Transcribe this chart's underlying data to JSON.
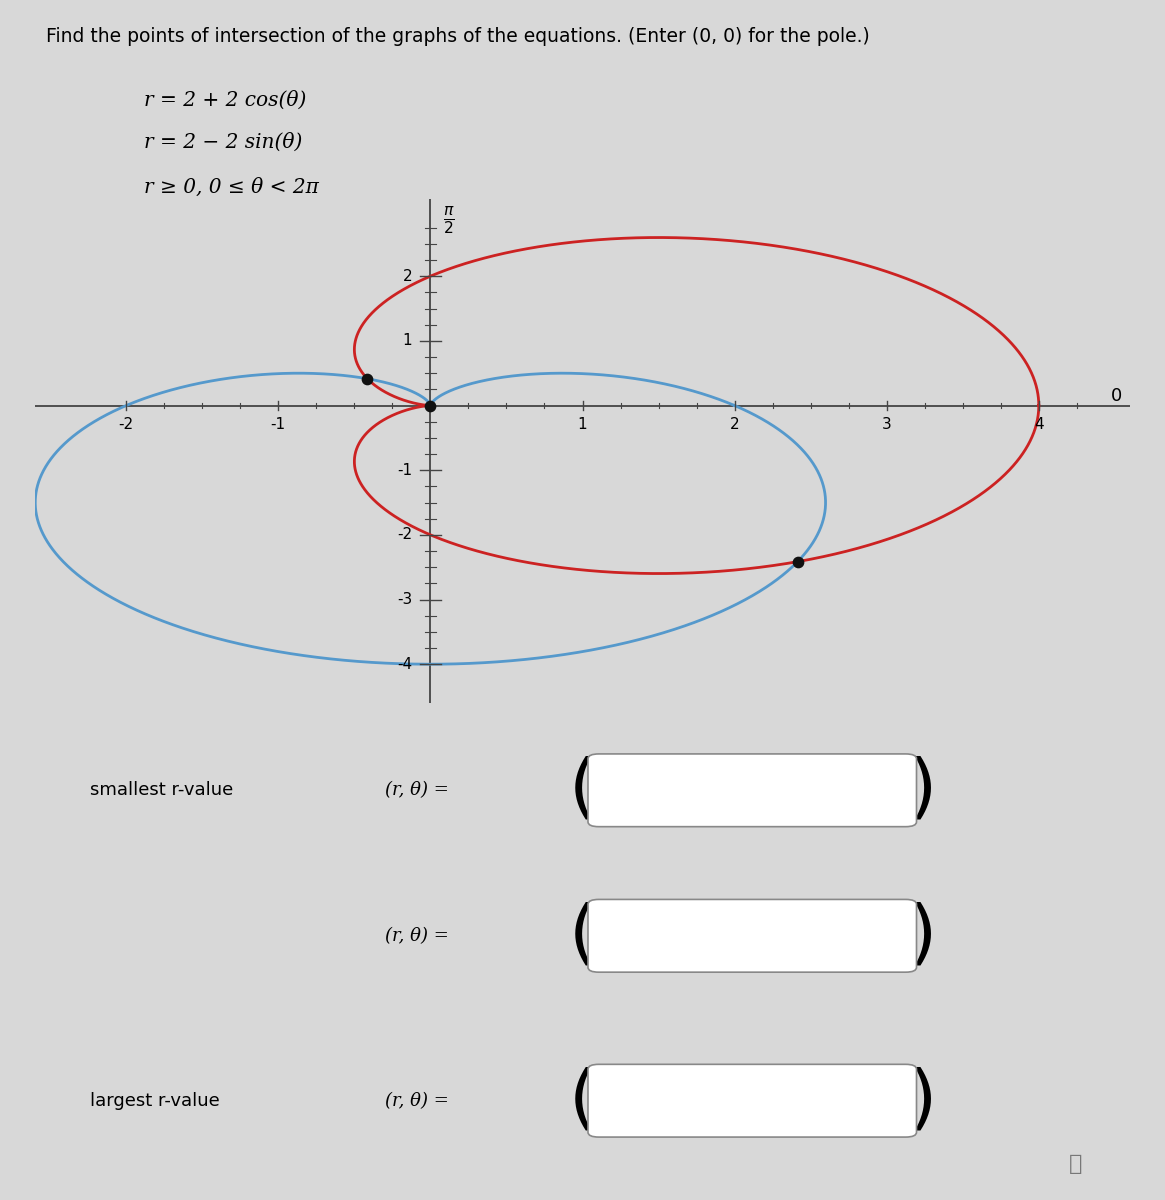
{
  "title_text": "Find the points of intersection of the graphs of the equations. (Enter (0, 0) for the pole.)",
  "eq1_text": "r = 2 + 2 cos(θ)",
  "eq2_text": "r = 2 − 2 sin(θ)",
  "eq3_text": "r ≥ 0, 0 ≤ θ < 2π",
  "curve1_color": "#cc2222",
  "curve2_color": "#5599cc",
  "axis_color": "#444444",
  "background_color": "#d8d8d8",
  "dot_color": "#111111",
  "dot_size": 55,
  "xlim": [
    -2.6,
    4.6
  ],
  "ylim": [
    -4.6,
    3.2
  ],
  "xticks": [
    -2,
    -1,
    1,
    2,
    3,
    4
  ],
  "yticks": [
    -4,
    -3,
    -2,
    -1,
    1,
    2
  ],
  "smallest_r_label": "smallest r-value",
  "largest_r_label": "largest r-value",
  "ro_label": "(r, θ) ="
}
